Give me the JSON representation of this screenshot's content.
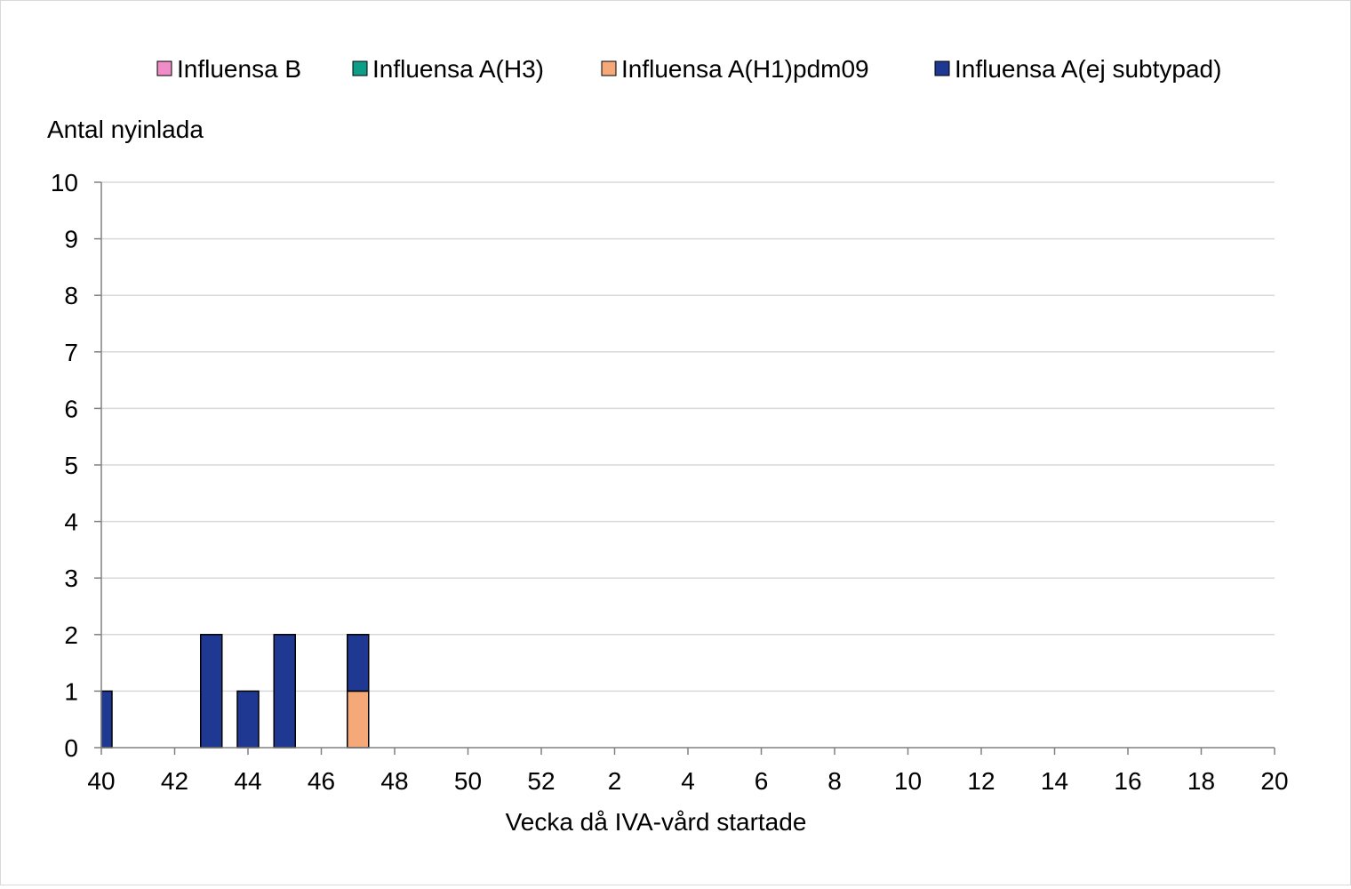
{
  "chart_data": {
    "type": "bar",
    "stacked": true,
    "ylabel": "Antal nyinlada",
    "xlabel": "Vecka då IVA-vård startade",
    "ylim": [
      0,
      10
    ],
    "yticks": [
      "0",
      "1",
      "2",
      "3",
      "4",
      "5",
      "6",
      "7",
      "8",
      "9",
      "10"
    ],
    "grid": true,
    "legend_position": "top",
    "categories": [
      "40",
      "41",
      "42",
      "43",
      "44",
      "45",
      "46",
      "47",
      "48",
      "49",
      "50",
      "51",
      "52",
      "1",
      "2",
      "3",
      "4",
      "5",
      "6",
      "7",
      "8",
      "9",
      "10",
      "11",
      "12",
      "13",
      "14",
      "15",
      "16",
      "17",
      "18",
      "19",
      "20"
    ],
    "xtick_labels": [
      "40",
      "42",
      "44",
      "46",
      "48",
      "50",
      "52",
      "2",
      "4",
      "6",
      "8",
      "10",
      "12",
      "14",
      "16",
      "18",
      "20"
    ],
    "series": [
      {
        "name": "Influensa B",
        "color": "#f08cc8",
        "values": [
          0,
          0,
          0,
          0,
          0,
          0,
          0,
          0,
          0,
          0,
          0,
          0,
          0,
          0,
          0,
          0,
          0,
          0,
          0,
          0,
          0,
          0,
          0,
          0,
          0,
          0,
          0,
          0,
          0,
          0,
          0,
          0,
          0
        ]
      },
      {
        "name": "Influensa A(H3)",
        "color": "#0e9e88",
        "values": [
          0,
          0,
          0,
          0,
          0,
          0,
          0,
          0,
          0,
          0,
          0,
          0,
          0,
          0,
          0,
          0,
          0,
          0,
          0,
          0,
          0,
          0,
          0,
          0,
          0,
          0,
          0,
          0,
          0,
          0,
          0,
          0,
          0
        ]
      },
      {
        "name": "Influensa A(H1)pdm09",
        "color": "#f5a878",
        "values": [
          0,
          0,
          0,
          0,
          0,
          0,
          0,
          1,
          0,
          0,
          0,
          0,
          0,
          0,
          0,
          0,
          0,
          0,
          0,
          0,
          0,
          0,
          0,
          0,
          0,
          0,
          0,
          0,
          0,
          0,
          0,
          0,
          0
        ]
      },
      {
        "name": "Influensa A(ej subtypad)",
        "color": "#1f3891",
        "values": [
          1,
          0,
          0,
          2,
          1,
          2,
          0,
          1,
          0,
          0,
          0,
          0,
          0,
          0,
          0,
          0,
          0,
          0,
          0,
          0,
          0,
          0,
          0,
          0,
          0,
          0,
          0,
          0,
          0,
          0,
          0,
          0,
          0
        ]
      }
    ]
  }
}
